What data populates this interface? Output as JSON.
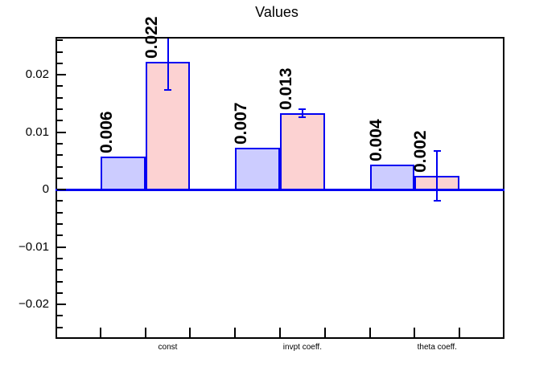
{
  "chart_data": {
    "type": "bar",
    "title": "Values",
    "ylim": [
      -0.026,
      0.0266
    ],
    "grid": false,
    "legend": null,
    "n_bins": 10,
    "ymajor": [
      {
        "v": 0.02,
        "label": "0.02"
      },
      {
        "v": 0.01,
        "label": "0.01"
      },
      {
        "v": 0,
        "label": "0"
      },
      {
        "v": -0.01,
        "label": "−0.01"
      },
      {
        "v": -0.02,
        "label": "−0.02"
      }
    ],
    "yminor_step": 0.002,
    "categories": [
      {
        "bin": 3,
        "label": "const"
      },
      {
        "bin": 6,
        "label": "invpt coeff."
      },
      {
        "bin": 9,
        "label": "theta coeff."
      }
    ],
    "series": [
      {
        "name": "series-blue",
        "fill": "#ccccff"
      },
      {
        "name": "series-pink",
        "fill": "#fcd2d2"
      }
    ],
    "bars": [
      {
        "bin": 2,
        "series": 0,
        "value": 0.0057,
        "label": "0.006"
      },
      {
        "bin": 3,
        "series": 1,
        "value": 0.0223,
        "label": "0.022",
        "err": 0.005
      },
      {
        "bin": 5,
        "series": 0,
        "value": 0.0073,
        "label": "0.007"
      },
      {
        "bin": 6,
        "series": 1,
        "value": 0.0133,
        "label": "0.013",
        "err": 0.0007
      },
      {
        "bin": 8,
        "series": 0,
        "value": 0.0043,
        "label": "0.004"
      },
      {
        "bin": 9,
        "series": 1,
        "value": 0.0024,
        "label": "0.002",
        "err": 0.0043
      }
    ],
    "colors": {
      "bar_border": "#0000f2",
      "error_bar": "#0000f2",
      "zero_line": "#0000f2",
      "frame": "#000000",
      "text": "#000000"
    }
  }
}
